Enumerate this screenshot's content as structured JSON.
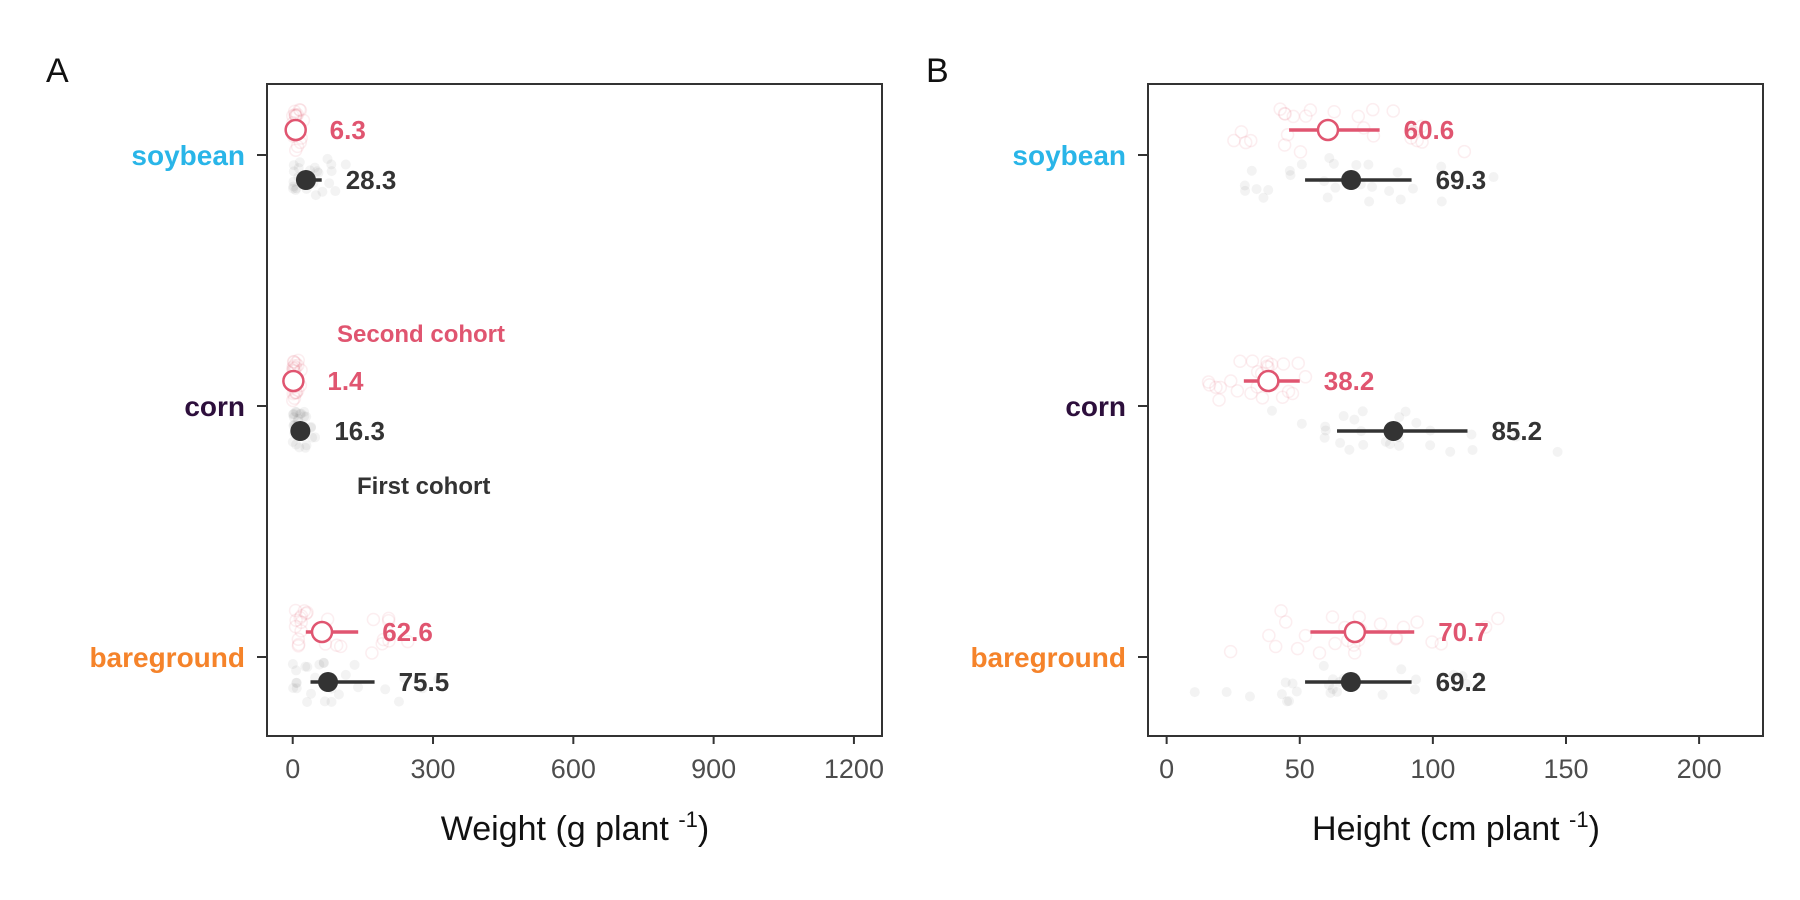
{
  "chart_data": [
    {
      "type": "dot-errorbar",
      "panel_label": "A",
      "xlabel": "Weight (g plant",
      "xlabel_sup": "-1",
      "xlabel_close": ")",
      "xlim": [
        -55,
        1260
      ],
      "xticks": [
        0,
        300,
        600,
        900,
        1200
      ],
      "categories": [
        "soybean",
        "corn",
        "bareground"
      ],
      "series": [
        {
          "cohort": "second",
          "marker": "open-circle",
          "color": "#e05570",
          "values": [
            6.3,
            1.4,
            62.6
          ],
          "error": [
            [
              0,
              12
            ],
            [
              0,
              3
            ],
            [
              28,
              140
            ]
          ],
          "labels": [
            "6.3",
            "1.4",
            "62.6"
          ]
        },
        {
          "cohort": "first",
          "marker": "filled-circle",
          "color": "#333333",
          "values": [
            28.3,
            16.3,
            75.5
          ],
          "error": [
            [
              14,
              62
            ],
            [
              8,
              30
            ],
            [
              38,
              175
            ]
          ],
          "labels": [
            "28.3",
            "16.3",
            "75.5"
          ]
        }
      ],
      "annotations": [
        "Second cohort",
        "First cohort"
      ],
      "grid": false
    },
    {
      "type": "dot-errorbar",
      "panel_label": "B",
      "xlabel": "Height (cm plant",
      "xlabel_sup": "-1",
      "xlabel_close": ")",
      "xlim": [
        -7,
        224
      ],
      "xticks": [
        0,
        50,
        100,
        150,
        200
      ],
      "categories": [
        "soybean",
        "corn",
        "bareground"
      ],
      "series": [
        {
          "cohort": "second",
          "marker": "open-circle",
          "color": "#e05570",
          "values": [
            60.6,
            38.2,
            70.7
          ],
          "error": [
            [
              46,
              80
            ],
            [
              29,
              50
            ],
            [
              54,
              93
            ]
          ],
          "labels": [
            "60.6",
            "38.2",
            "70.7"
          ]
        },
        {
          "cohort": "first",
          "marker": "filled-circle",
          "color": "#333333",
          "values": [
            69.3,
            85.2,
            69.2
          ],
          "error": [
            [
              52,
              92
            ],
            [
              64,
              113
            ],
            [
              52,
              92
            ]
          ],
          "labels": [
            "69.3",
            "85.2",
            "69.2"
          ]
        }
      ],
      "grid": false
    }
  ],
  "category_colors": {
    "soybean": "#29b5e8",
    "corn": "#2d0f3c",
    "bareground": "#f5832a"
  },
  "cohort_labels": {
    "second": "Second cohort",
    "first": "First cohort"
  }
}
